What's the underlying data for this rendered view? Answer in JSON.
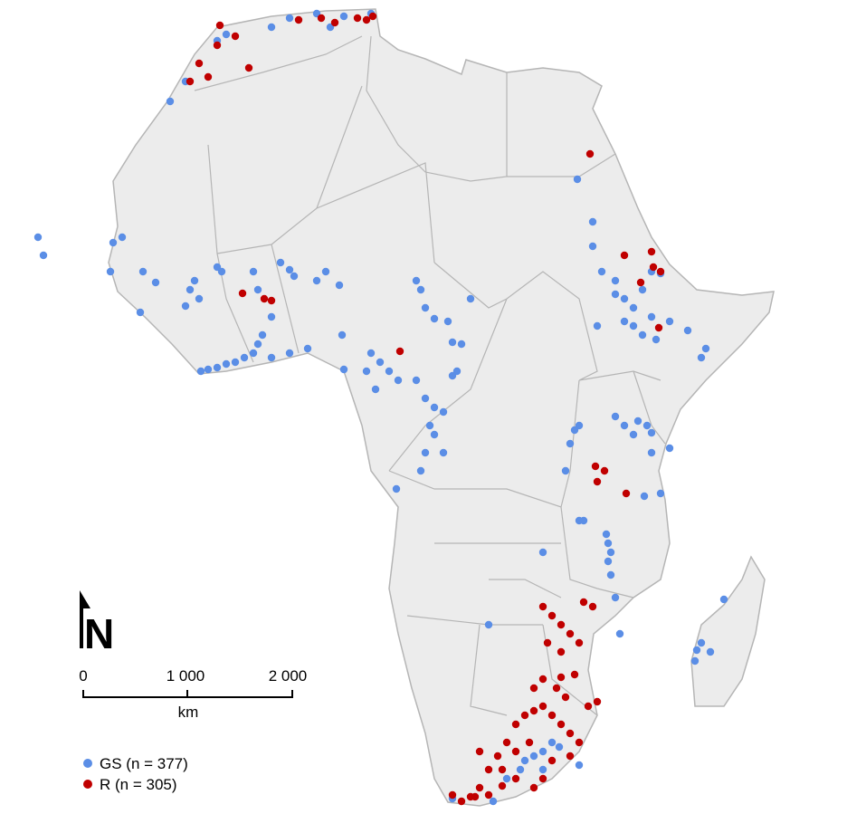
{
  "north_arrow": {
    "label": "N"
  },
  "scale_bar": {
    "labels": [
      "0",
      "1 000",
      "2 000"
    ],
    "unit": "km"
  },
  "legend": {
    "items": [
      {
        "label": "GS (n = 377)",
        "color": "#5b8ee6"
      },
      {
        "label": "R (n = 305)",
        "color": "#c00000"
      }
    ]
  }
}
